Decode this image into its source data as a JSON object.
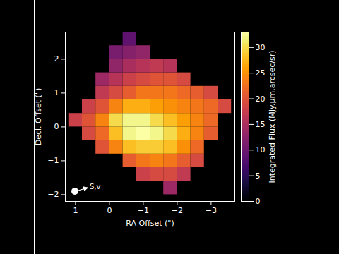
{
  "chart_data": {
    "type": "heatmap",
    "xlabel": "RA Offset (\")",
    "ylabel": "Decl. Offset (\")",
    "x": [
      1.0,
      0.6,
      0.2,
      -0.2,
      -0.6,
      -1.0,
      -1.4,
      -1.8,
      -2.2,
      -2.6,
      -3.0,
      -3.4
    ],
    "y": [
      -1.8,
      -1.4,
      -1.0,
      -0.6,
      -0.2,
      0.2,
      0.6,
      1.0,
      1.4,
      1.8,
      2.2,
      2.6
    ],
    "cells": [
      [
        null,
        null,
        null,
        null,
        null,
        null,
        null,
        14,
        null,
        null,
        null,
        null
      ],
      [
        null,
        null,
        null,
        null,
        null,
        18,
        19,
        19,
        17,
        null,
        null,
        null
      ],
      [
        null,
        null,
        null,
        null,
        21,
        23,
        24,
        23,
        21,
        19,
        null,
        null
      ],
      [
        null,
        null,
        20,
        24,
        28,
        29,
        29,
        28,
        25,
        22,
        null,
        null
      ],
      [
        null,
        19,
        22,
        28,
        32,
        33,
        32,
        30,
        27,
        24,
        21,
        null
      ],
      [
        18,
        20,
        24,
        30,
        32,
        32,
        30,
        28,
        26,
        24,
        22,
        null
      ],
      [
        null,
        18,
        20,
        24,
        27,
        27,
        26,
        25,
        24,
        23,
        22,
        19
      ],
      [
        null,
        null,
        17,
        19,
        21,
        23,
        23,
        23,
        22,
        21,
        19,
        null
      ],
      [
        null,
        null,
        14,
        16,
        18,
        19,
        20,
        20,
        19,
        null,
        null,
        null
      ],
      [
        null,
        null,
        null,
        13,
        15,
        16,
        17,
        16,
        null,
        null,
        null,
        null
      ],
      [
        null,
        null,
        null,
        11,
        12,
        13,
        null,
        null,
        null,
        null,
        null,
        null
      ],
      [
        null,
        null,
        null,
        null,
        9,
        null,
        null,
        null,
        null,
        null,
        null,
        null
      ]
    ],
    "xlim": [
      1.3,
      -3.7
    ],
    "ylim": [
      -2.2,
      2.8
    ],
    "xticks": [
      1,
      0,
      {
        "value": -1,
        "label": "−1"
      },
      {
        "value": -2,
        "label": "−2"
      },
      {
        "value": -3,
        "label": "−3"
      }
    ],
    "yticks": [
      {
        "value": -2,
        "label": "−2"
      },
      {
        "value": -1,
        "label": "−1"
      },
      0,
      1,
      2
    ],
    "color": "inferno",
    "colorbar": {
      "label": "Integrated Flux (MJy.µm.arcsec/sr)",
      "range": [
        0,
        33
      ],
      "ticks": [
        0,
        5,
        10,
        15,
        20,
        25,
        30
      ]
    },
    "annotations": [
      "S,v"
    ]
  }
}
